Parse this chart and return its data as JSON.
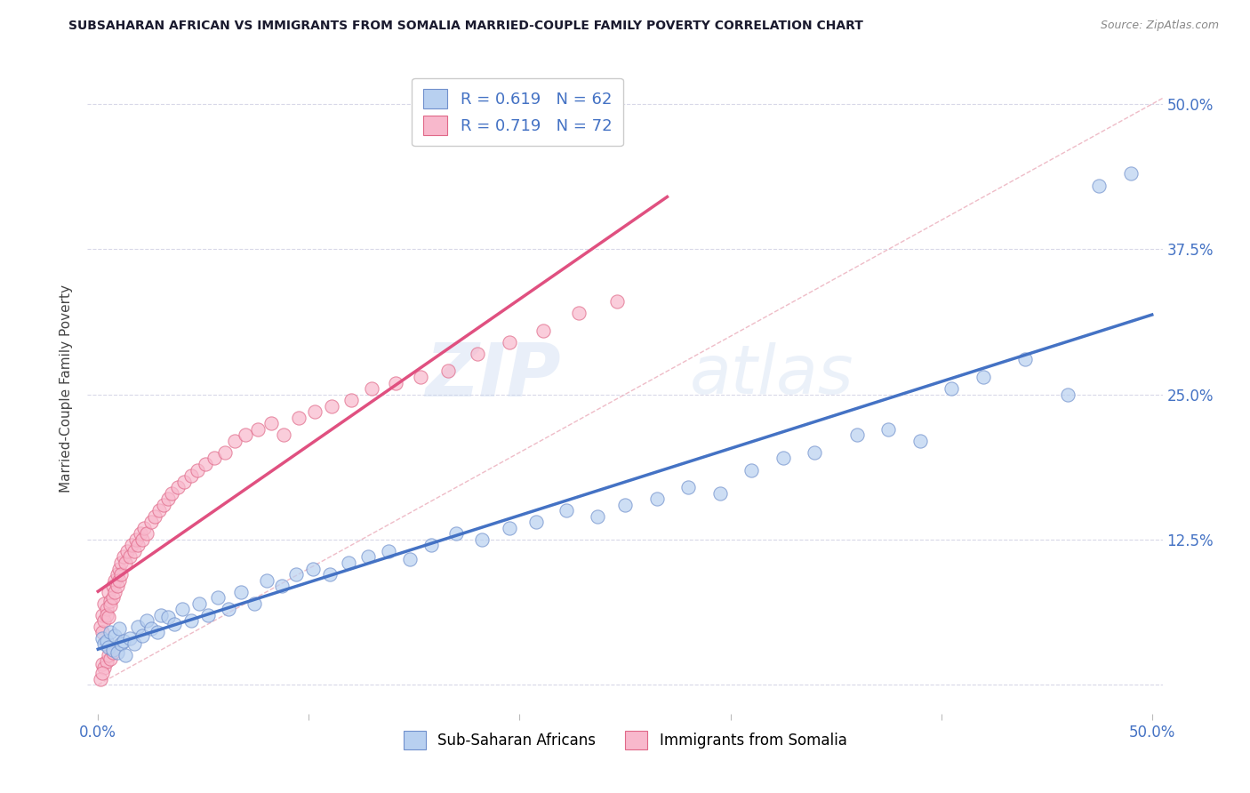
{
  "title": "SUBSAHARAN AFRICAN VS IMMIGRANTS FROM SOMALIA MARRIED-COUPLE FAMILY POVERTY CORRELATION CHART",
  "source": "Source: ZipAtlas.com",
  "ylabel": "Married-Couple Family Poverty",
  "R_blue": 0.619,
  "N_blue": 62,
  "R_pink": 0.719,
  "N_pink": 72,
  "blue_line_color": "#4472c4",
  "pink_line_color": "#e05080",
  "blue_scatter_facecolor": "#b8d0f0",
  "blue_scatter_edgecolor": "#7090cc",
  "pink_scatter_facecolor": "#f8b8cc",
  "pink_scatter_edgecolor": "#e06888",
  "diagonal_color": "#e8a0b0",
  "watermark_zip": "ZIP",
  "watermark_atlas": "atlas",
  "legend_label_blue": "Sub-Saharan Africans",
  "legend_label_pink": "Immigrants from Somalia",
  "background_color": "#ffffff",
  "grid_color": "#d8d8e8",
  "title_color": "#1a1a2e",
  "source_color": "#888888",
  "axis_label_color": "#4472c4",
  "ylabel_color": "#444444",
  "blue_x": [
    0.002,
    0.003,
    0.004,
    0.005,
    0.006,
    0.007,
    0.008,
    0.009,
    0.01,
    0.011,
    0.012,
    0.013,
    0.015,
    0.017,
    0.019,
    0.021,
    0.023,
    0.025,
    0.028,
    0.03,
    0.033,
    0.036,
    0.04,
    0.044,
    0.048,
    0.052,
    0.057,
    0.062,
    0.068,
    0.074,
    0.08,
    0.087,
    0.094,
    0.102,
    0.11,
    0.119,
    0.128,
    0.138,
    0.148,
    0.158,
    0.17,
    0.182,
    0.195,
    0.208,
    0.222,
    0.237,
    0.25,
    0.265,
    0.28,
    0.295,
    0.31,
    0.325,
    0.34,
    0.36,
    0.375,
    0.39,
    0.405,
    0.42,
    0.44,
    0.46,
    0.475,
    0.49
  ],
  "blue_y": [
    0.04,
    0.035,
    0.038,
    0.032,
    0.045,
    0.03,
    0.042,
    0.028,
    0.048,
    0.035,
    0.038,
    0.025,
    0.04,
    0.035,
    0.05,
    0.042,
    0.055,
    0.048,
    0.045,
    0.06,
    0.058,
    0.052,
    0.065,
    0.055,
    0.07,
    0.06,
    0.075,
    0.065,
    0.08,
    0.07,
    0.09,
    0.085,
    0.095,
    0.1,
    0.095,
    0.105,
    0.11,
    0.115,
    0.108,
    0.12,
    0.13,
    0.125,
    0.135,
    0.14,
    0.15,
    0.145,
    0.155,
    0.16,
    0.17,
    0.165,
    0.185,
    0.195,
    0.2,
    0.215,
    0.22,
    0.21,
    0.255,
    0.265,
    0.28,
    0.25,
    0.43,
    0.44
  ],
  "pink_x": [
    0.001,
    0.002,
    0.002,
    0.003,
    0.003,
    0.004,
    0.004,
    0.005,
    0.005,
    0.006,
    0.006,
    0.007,
    0.007,
    0.008,
    0.008,
    0.009,
    0.009,
    0.01,
    0.01,
    0.011,
    0.011,
    0.012,
    0.013,
    0.014,
    0.015,
    0.016,
    0.017,
    0.018,
    0.019,
    0.02,
    0.021,
    0.022,
    0.023,
    0.025,
    0.027,
    0.029,
    0.031,
    0.033,
    0.035,
    0.038,
    0.041,
    0.044,
    0.047,
    0.051,
    0.055,
    0.06,
    0.065,
    0.07,
    0.076,
    0.082,
    0.088,
    0.095,
    0.103,
    0.111,
    0.12,
    0.13,
    0.141,
    0.153,
    0.166,
    0.18,
    0.195,
    0.211,
    0.228,
    0.246,
    0.002,
    0.003,
    0.004,
    0.005,
    0.006,
    0.007,
    0.001,
    0.002
  ],
  "pink_y": [
    0.05,
    0.045,
    0.06,
    0.055,
    0.07,
    0.065,
    0.06,
    0.08,
    0.058,
    0.072,
    0.068,
    0.085,
    0.075,
    0.09,
    0.08,
    0.095,
    0.085,
    0.1,
    0.09,
    0.105,
    0.095,
    0.11,
    0.105,
    0.115,
    0.11,
    0.12,
    0.115,
    0.125,
    0.12,
    0.13,
    0.125,
    0.135,
    0.13,
    0.14,
    0.145,
    0.15,
    0.155,
    0.16,
    0.165,
    0.17,
    0.175,
    0.18,
    0.185,
    0.19,
    0.195,
    0.2,
    0.21,
    0.215,
    0.22,
    0.225,
    0.215,
    0.23,
    0.235,
    0.24,
    0.245,
    0.255,
    0.26,
    0.265,
    0.27,
    0.285,
    0.295,
    0.305,
    0.32,
    0.33,
    0.018,
    0.015,
    0.02,
    0.025,
    0.022,
    0.028,
    0.005,
    0.01
  ]
}
